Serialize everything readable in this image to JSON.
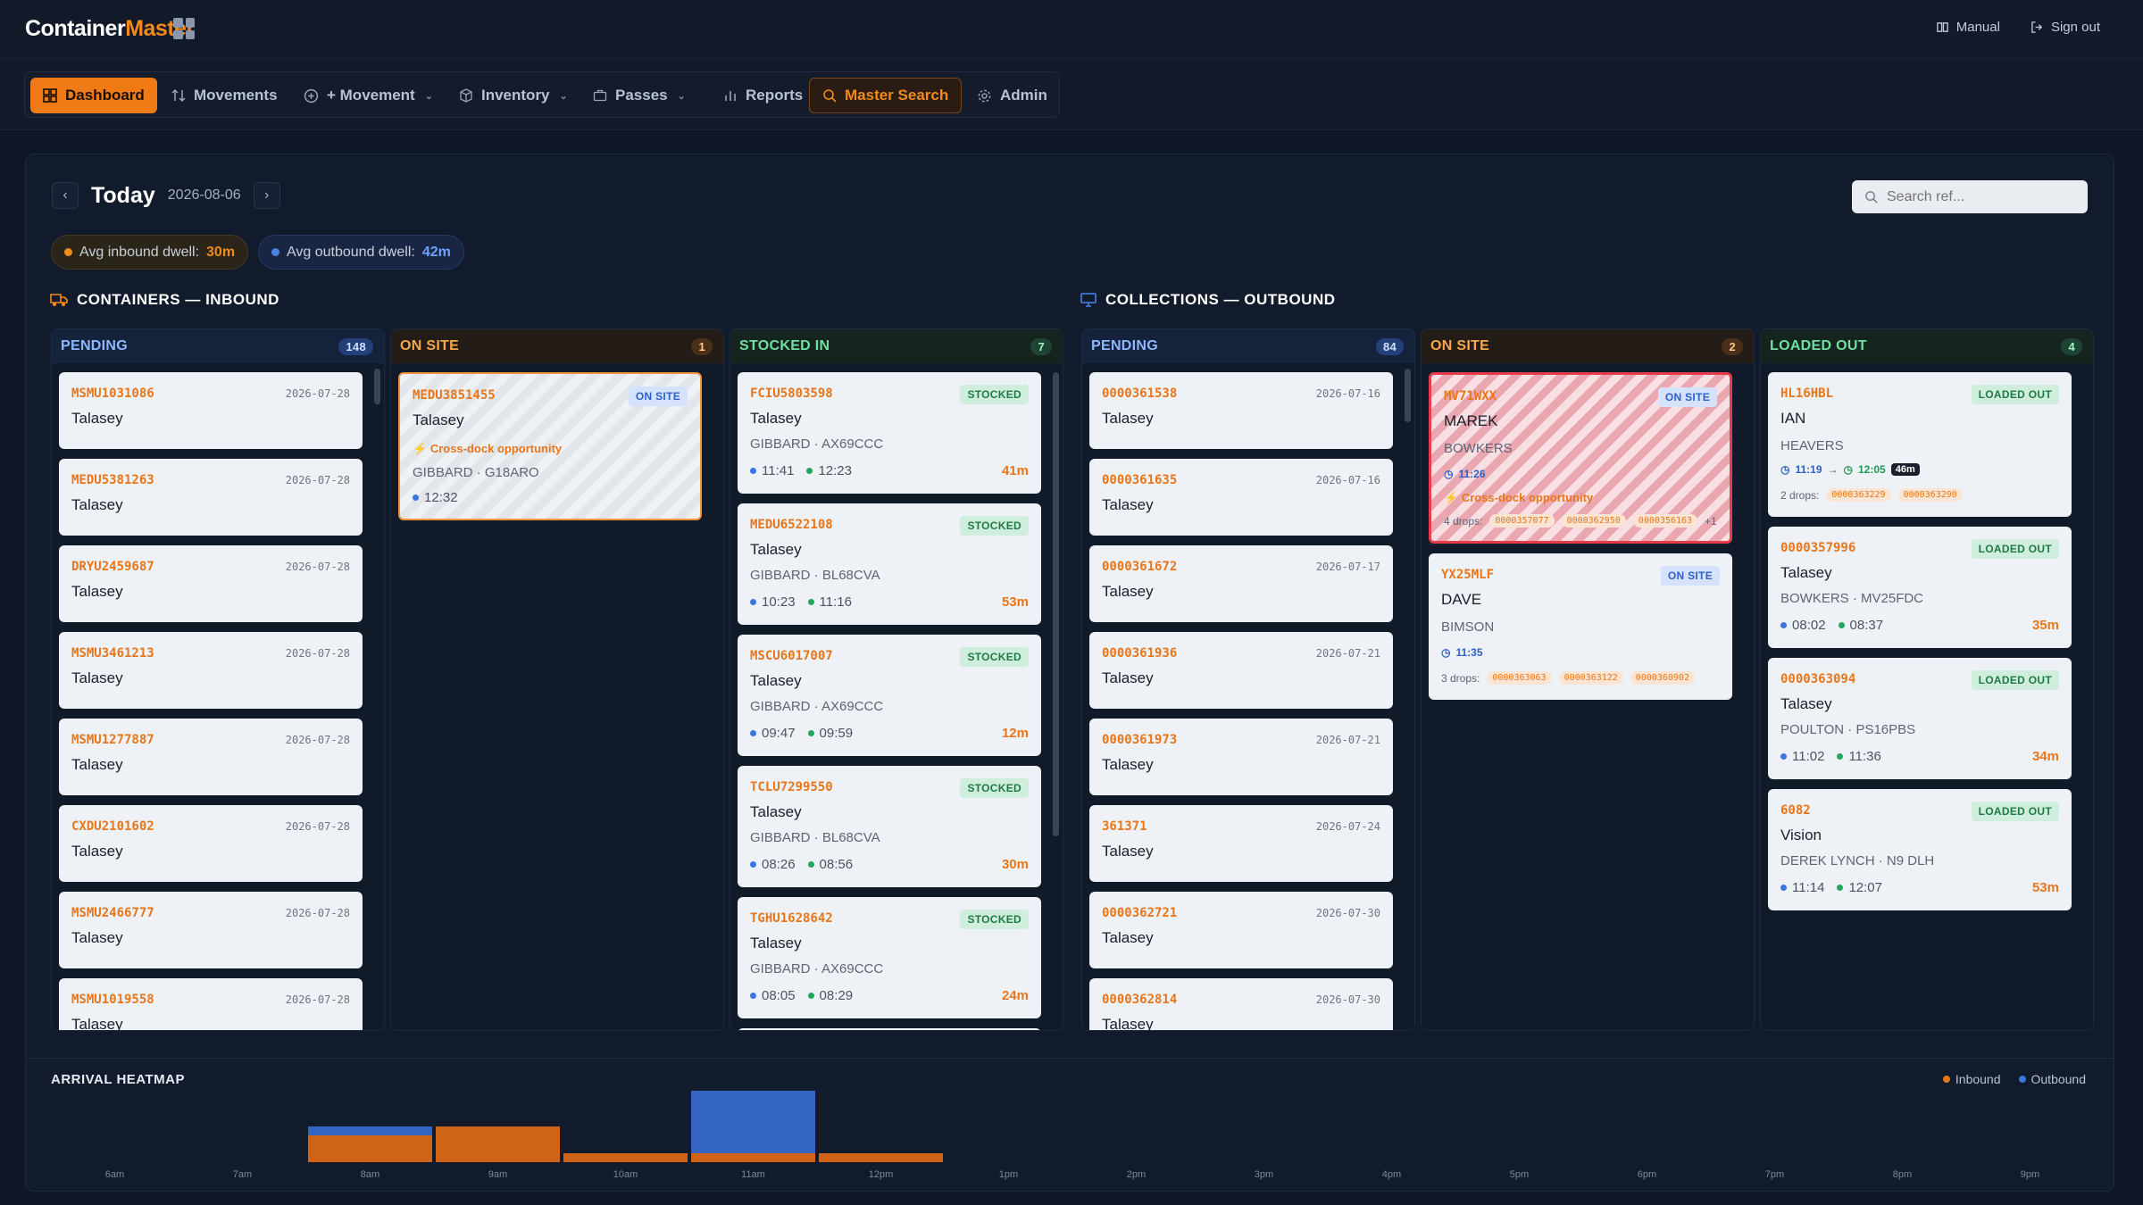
{
  "app": {
    "brand_a": "Container",
    "brand_b": "Master",
    "manual": "Manual",
    "signout": "Sign out"
  },
  "nav": [
    {
      "label": "Dashboard",
      "icon": "grid-icon",
      "active": true
    },
    {
      "label": "Movements",
      "icon": "arrows-icon"
    },
    {
      "label": "+ Movement",
      "icon": "plus-circle-icon",
      "dropdown": true
    },
    {
      "label": "Inventory",
      "icon": "box-icon",
      "dropdown": true
    },
    {
      "label": "Passes",
      "icon": "briefcase-icon",
      "dropdown": true
    },
    {
      "label": "Reports",
      "icon": "bar-chart-icon"
    },
    {
      "label": "Master Search",
      "icon": "search-icon",
      "highlight": true
    },
    {
      "label": "Admin",
      "icon": "gear-icon"
    }
  ],
  "date": {
    "today": "Today",
    "value": "2026-08-06"
  },
  "search": {
    "placeholder": "Search ref..."
  },
  "dwell": {
    "in_label": "Avg inbound dwell:",
    "in_value": "30m",
    "out_label": "Avg outbound dwell:",
    "out_value": "42m"
  },
  "sections": {
    "inbound": "CONTAINERS — INBOUND",
    "outbound": "COLLECTIONS — OUTBOUND"
  },
  "columns": {
    "in_pending": {
      "title": "PENDING",
      "count": "148",
      "cards": [
        {
          "ref": "MSMU1031086",
          "date": "2026-07-28",
          "name": "Talasey"
        },
        {
          "ref": "MEDU5381263",
          "date": "2026-07-28",
          "name": "Talasey"
        },
        {
          "ref": "DRYU2459687",
          "date": "2026-07-28",
          "name": "Talasey"
        },
        {
          "ref": "MSMU3461213",
          "date": "2026-07-28",
          "name": "Talasey"
        },
        {
          "ref": "MSMU1277887",
          "date": "2026-07-28",
          "name": "Talasey"
        },
        {
          "ref": "CXDU2101602",
          "date": "2026-07-28",
          "name": "Talasey"
        },
        {
          "ref": "MSMU2466777",
          "date": "2026-07-28",
          "name": "Talasey"
        },
        {
          "ref": "MSMU1019558",
          "date": "2026-07-28",
          "name": "Talasey"
        }
      ]
    },
    "in_onsite": {
      "title": "ON SITE",
      "count": "1",
      "card": {
        "ref": "MEDU3851455",
        "badge": "ON SITE",
        "name": "Talasey",
        "xdock": "Cross-dock opportunity",
        "sub": "GIBBARD · G18ARO",
        "time": "12:32"
      }
    },
    "in_stocked": {
      "title": "STOCKED IN",
      "count": "7",
      "cards": [
        {
          "ref": "FCIU5803598",
          "badge": "STOCKED",
          "name": "Talasey",
          "sub": "GIBBARD · AX69CCC",
          "t1": "11:41",
          "t2": "12:23",
          "dur": "41m"
        },
        {
          "ref": "MEDU6522108",
          "badge": "STOCKED",
          "name": "Talasey",
          "sub": "GIBBARD · BL68CVA",
          "t1": "10:23",
          "t2": "11:16",
          "dur": "53m"
        },
        {
          "ref": "MSCU6017007",
          "badge": "STOCKED",
          "name": "Talasey",
          "sub": "GIBBARD · AX69CCC",
          "t1": "09:47",
          "t2": "09:59",
          "dur": "12m"
        },
        {
          "ref": "TCLU7299550",
          "badge": "STOCKED",
          "name": "Talasey",
          "sub": "GIBBARD · BL68CVA",
          "t1": "08:26",
          "t2": "08:56",
          "dur": "30m"
        },
        {
          "ref": "TGHU1628642",
          "badge": "STOCKED",
          "name": "Talasey",
          "sub": "GIBBARD · AX69CCC",
          "t1": "08:05",
          "t2": "08:29",
          "dur": "24m"
        }
      ]
    },
    "out_pending": {
      "title": "PENDING",
      "count": "84",
      "cards": [
        {
          "ref": "0000361538",
          "date": "2026-07-16",
          "name": "Talasey"
        },
        {
          "ref": "0000361635",
          "date": "2026-07-16",
          "name": "Talasey"
        },
        {
          "ref": "0000361672",
          "date": "2026-07-17",
          "name": "Talasey"
        },
        {
          "ref": "0000361936",
          "date": "2026-07-21",
          "name": "Talasey"
        },
        {
          "ref": "0000361973",
          "date": "2026-07-21",
          "name": "Talasey"
        },
        {
          "ref": "361371",
          "date": "2026-07-24",
          "name": "Talasey"
        },
        {
          "ref": "0000362721",
          "date": "2026-07-30",
          "name": "Talasey"
        },
        {
          "ref": "0000362814",
          "date": "2026-07-30",
          "name": "Talasey"
        }
      ]
    },
    "out_onsite": {
      "title": "ON SITE",
      "count": "2",
      "card1": {
        "ref": "MV71WXX",
        "badge": "ON SITE",
        "name": "MAREK",
        "sub": "BOWKERS",
        "time": "11:26",
        "xdock": "Cross-dock opportunity",
        "drops": "4 drops:",
        "chips": [
          "0000357077",
          "0000362950",
          "0000356163"
        ],
        "more": "+1"
      },
      "card2": {
        "ref": "YX25MLF",
        "badge": "ON SITE",
        "name": "DAVE",
        "sub": "BIMSON",
        "time": "11:35",
        "drops": "3 drops:",
        "chips": [
          "0000363063",
          "0000363122",
          "0000360902"
        ]
      }
    },
    "out_loaded": {
      "title": "LOADED OUT",
      "count": "4",
      "card1": {
        "ref": "HL16HBL",
        "badge": "LOADED OUT",
        "name": "IAN",
        "sub": "HEAVERS",
        "t1": "11:19",
        "t2": "12:05",
        "dur": "46m",
        "drops": "2 drops:",
        "chips": [
          "0000363229",
          "0000363290"
        ]
      },
      "cards": [
        {
          "ref": "0000357996",
          "badge": "LOADED OUT",
          "name": "Talasey",
          "sub": "BOWKERS · MV25FDC",
          "t1": "08:02",
          "t2": "08:37",
          "dur": "35m"
        },
        {
          "ref": "0000363094",
          "badge": "LOADED OUT",
          "name": "Talasey",
          "sub": "POULTON · PS16PBS",
          "t1": "11:02",
          "t2": "11:36",
          "dur": "34m"
        },
        {
          "ref": "6082",
          "badge": "LOADED OUT",
          "name": "Vision",
          "sub": "DEREK LYNCH · N9 DLH",
          "t1": "11:14",
          "t2": "12:07",
          "dur": "53m"
        }
      ]
    }
  },
  "heatmap": {
    "title": "ARRIVAL HEATMAP",
    "legend_in": "Inbound",
    "legend_out": "Outbound",
    "colors": {
      "in": "#cf6419",
      "out": "#3565c3"
    }
  },
  "chart_data": {
    "type": "bar",
    "title": "ARRIVAL HEATMAP",
    "categories": [
      "6am",
      "7am",
      "8am",
      "9am",
      "10am",
      "11am",
      "12pm",
      "1pm",
      "2pm",
      "3pm",
      "4pm",
      "5pm",
      "6pm",
      "7pm",
      "8pm",
      "9pm"
    ],
    "series": [
      {
        "name": "Inbound",
        "values": [
          0,
          0,
          3,
          4,
          1,
          1,
          1,
          0,
          0,
          0,
          0,
          0,
          0,
          0,
          0,
          0
        ]
      },
      {
        "name": "Outbound",
        "values": [
          0,
          0,
          1,
          0,
          0,
          7,
          0,
          0,
          0,
          0,
          0,
          0,
          0,
          0,
          0,
          0
        ]
      }
    ],
    "stacked": true
  }
}
